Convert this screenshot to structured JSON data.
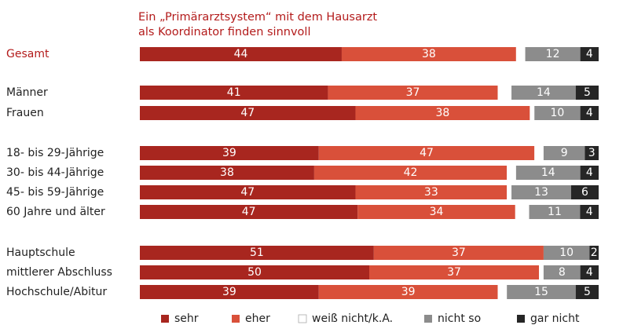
{
  "chart_data": {
    "type": "bar",
    "orientation": "horizontal",
    "stacked": true,
    "normalized_to_100": true,
    "title_lines": [
      "Ein „Primärarztsystem“ mit dem Hausarzt",
      "als Koordinator finden sinnvoll"
    ],
    "categories": [
      "Gesamt",
      "Männer",
      "Frauen",
      "18- bis 29-Jährige",
      "30- bis 44-Jährige",
      "45- bis 59-Jährige",
      "60 Jahre und älter",
      "Hauptschule",
      "mittlerer Abschluss",
      "Hochschule/Abitur"
    ],
    "groups": [
      [
        0
      ],
      [
        1,
        2
      ],
      [
        3,
        4,
        5,
        6
      ],
      [
        7,
        8,
        9
      ]
    ],
    "highlight_categories": [
      "Gesamt"
    ],
    "series": [
      {
        "name": "sehr",
        "color": "#a8261f",
        "label_color": "#ffffff",
        "values": [
          44,
          41,
          47,
          39,
          38,
          47,
          47,
          51,
          50,
          39
        ]
      },
      {
        "name": "eher",
        "color": "#d9503a",
        "label_color": "#ffffff",
        "values": [
          38,
          37,
          38,
          47,
          42,
          33,
          34,
          37,
          37,
          39
        ]
      },
      {
        "name": "weiß nicht/k.A.",
        "color": "#ffffff",
        "label_color": "#222222",
        "show_label": false,
        "values": [
          2,
          3,
          1,
          2,
          2,
          1,
          3,
          0,
          1,
          2
        ]
      },
      {
        "name": "nicht so",
        "color": "#8c8c8c",
        "label_color": "#ffffff",
        "values": [
          12,
          14,
          10,
          9,
          14,
          13,
          11,
          10,
          8,
          15
        ]
      },
      {
        "name": "gar nicht",
        "color": "#262626",
        "label_color": "#ffffff",
        "values": [
          4,
          5,
          4,
          3,
          4,
          6,
          4,
          2,
          4,
          5
        ]
      }
    ],
    "legend": {
      "position": "bottom",
      "items": [
        "sehr",
        "eher",
        "weiß nicht/k.A.",
        "nicht so",
        "gar nicht"
      ]
    },
    "xlim": [
      0,
      100
    ],
    "grid": false
  }
}
